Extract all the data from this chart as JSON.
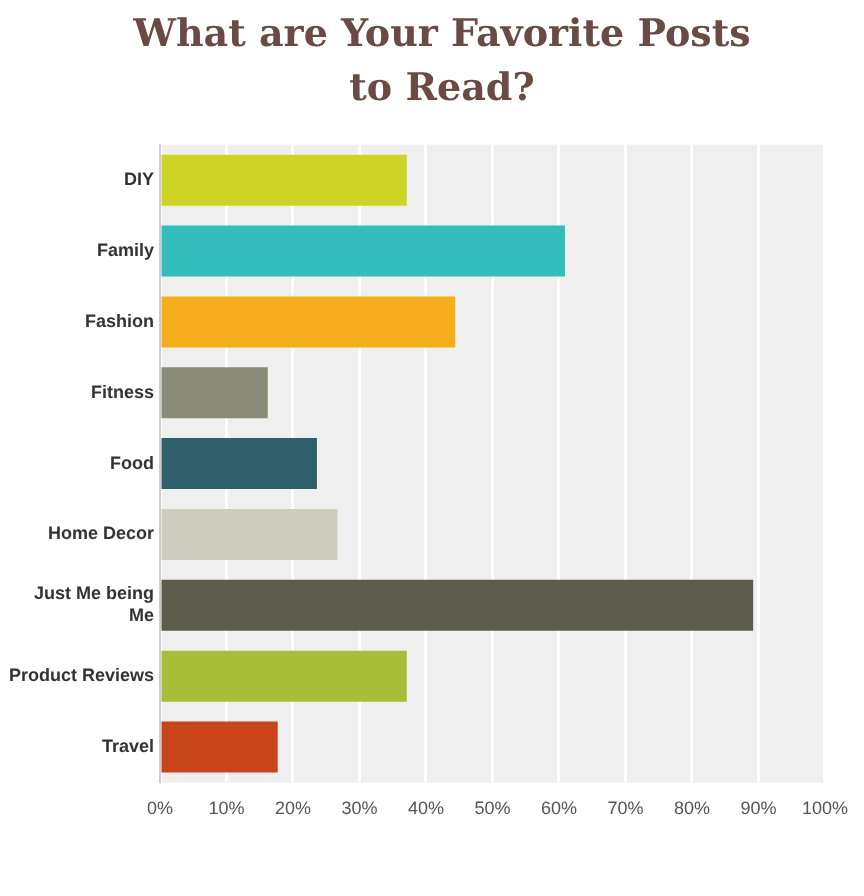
{
  "chart_data": {
    "type": "bar",
    "orientation": "horizontal",
    "title": "What are Your Favorite Posts to Read?",
    "categories": [
      "DIY",
      "Family",
      "Fashion",
      "Fitness",
      "Food",
      "Home Decor",
      "Just Me being Me",
      "Product Reviews",
      "Travel"
    ],
    "values": [
      37.1,
      60.9,
      44.4,
      16.2,
      23.6,
      26.7,
      89.2,
      37.1,
      17.7
    ],
    "colors": [
      "#cdd424",
      "#33bdbd",
      "#f6ad1c",
      "#8a8a79",
      "#2e5f6b",
      "#cfcdbf",
      "#5c5b4c",
      "#a8bd38",
      "#c9441b"
    ],
    "xlim": [
      0,
      100
    ],
    "xticks": [
      {
        "value": 0,
        "label": "0%"
      },
      {
        "value": 10,
        "label": "10%"
      },
      {
        "value": 20,
        "label": "20%"
      },
      {
        "value": 30,
        "label": "30%"
      },
      {
        "value": 40,
        "label": "40%"
      },
      {
        "value": 50,
        "label": "50%"
      },
      {
        "value": 60,
        "label": "60%"
      },
      {
        "value": 70,
        "label": "70%"
      },
      {
        "value": 80,
        "label": "80%"
      },
      {
        "value": 90,
        "label": "90%"
      },
      {
        "value": 100,
        "label": "100%"
      }
    ],
    "grid": "x"
  }
}
